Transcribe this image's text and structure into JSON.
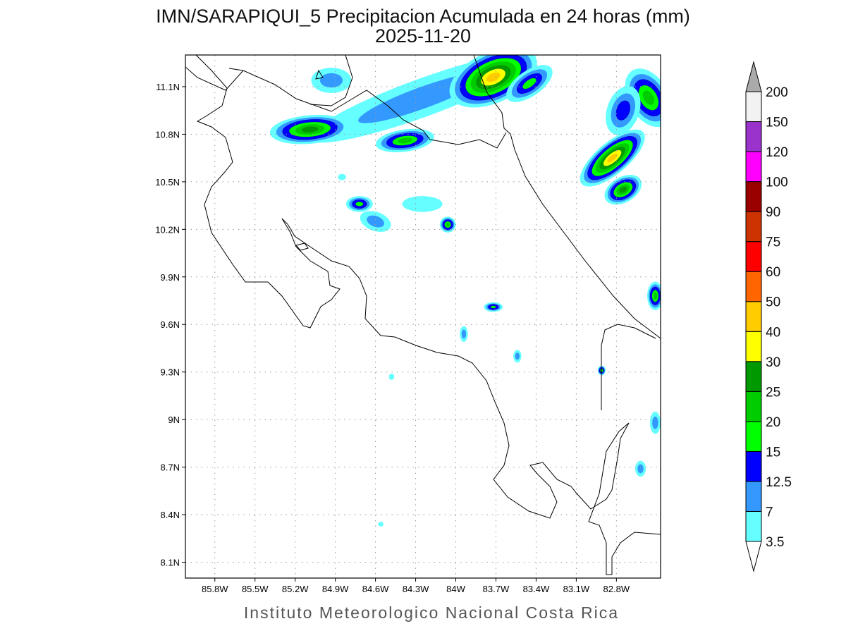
{
  "chart_data": {
    "type": "heatmap",
    "title": "IMN/SARAPIQUI_5 Precipitacion Acumulada en 24 horas (mm)",
    "subtitle": "2025-11-20",
    "footer": "Instituto Meteorologico Nacional Costa Rica",
    "x_ticks": [
      {
        "value": -85.8,
        "label": "85.8W"
      },
      {
        "value": -85.5,
        "label": "85.5W"
      },
      {
        "value": -85.2,
        "label": "85.2W"
      },
      {
        "value": -84.9,
        "label": "84.9W"
      },
      {
        "value": -84.6,
        "label": "84.6W"
      },
      {
        "value": -84.3,
        "label": "84.3W"
      },
      {
        "value": -84.0,
        "label": "84W"
      },
      {
        "value": -83.7,
        "label": "83.7W"
      },
      {
        "value": -83.4,
        "label": "83.4W"
      },
      {
        "value": -83.1,
        "label": "83.1W"
      },
      {
        "value": -82.8,
        "label": "82.8W"
      }
    ],
    "y_ticks": [
      {
        "value": 11.1,
        "label": "11.1N"
      },
      {
        "value": 10.8,
        "label": "10.8N"
      },
      {
        "value": 10.5,
        "label": "10.5N"
      },
      {
        "value": 10.2,
        "label": "10.2N"
      },
      {
        "value": 9.9,
        "label": "9.9N"
      },
      {
        "value": 9.6,
        "label": "9.6N"
      },
      {
        "value": 9.3,
        "label": "9.3N"
      },
      {
        "value": 9.0,
        "label": "9N"
      },
      {
        "value": 8.7,
        "label": "8.7N"
      },
      {
        "value": 8.4,
        "label": "8.4N"
      },
      {
        "value": 8.1,
        "label": "8.1N"
      }
    ],
    "xlim": [
      -86.02,
      -82.47
    ],
    "ylim": [
      8.0,
      11.3
    ],
    "grid": true,
    "colorbar": {
      "placement": "right",
      "levels": [
        {
          "label": "3.5",
          "value": 3.5,
          "color": "#66ffff"
        },
        {
          "label": "7",
          "value": 7,
          "color": "#3399ff"
        },
        {
          "label": "12.5",
          "value": 12.5,
          "color": "#0000ff"
        },
        {
          "label": "15",
          "value": 15,
          "color": "#00ff00"
        },
        {
          "label": "20",
          "value": 20,
          "color": "#00cc00"
        },
        {
          "label": "25",
          "value": 25,
          "color": "#009900"
        },
        {
          "label": "30",
          "value": 30,
          "color": "#ffff00"
        },
        {
          "label": "40",
          "value": 40,
          "color": "#ffcc00"
        },
        {
          "label": "50",
          "value": 50,
          "color": "#ff6600"
        },
        {
          "label": "60",
          "value": 60,
          "color": "#ff0000"
        },
        {
          "label": "75",
          "value": 75,
          "color": "#cc3300"
        },
        {
          "label": "90",
          "value": 90,
          "color": "#990000"
        },
        {
          "label": "100",
          "value": 100,
          "color": "#ff00ff"
        },
        {
          "label": "120",
          "value": 120,
          "color": "#9933cc"
        },
        {
          "label": "150",
          "value": 150,
          "color": "#f2f2f2"
        },
        {
          "label": "200",
          "value": 200,
          "color": "#aaaaaa"
        }
      ]
    },
    "precip_cells": [
      {
        "lon": -84.25,
        "lat": 11.03,
        "peak_mm": 7,
        "size_deg": [
          0.9,
          0.12
        ],
        "rot": -20
      },
      {
        "lon": -83.72,
        "lat": 11.16,
        "peak_mm": 40,
        "size_deg": [
          0.35,
          0.16
        ],
        "rot": -25
      },
      {
        "lon": -83.45,
        "lat": 11.12,
        "peak_mm": 15,
        "size_deg": [
          0.2,
          0.08
        ],
        "rot": -35
      },
      {
        "lon": -85.09,
        "lat": 10.83,
        "peak_mm": 25,
        "size_deg": [
          0.3,
          0.09
        ],
        "rot": -5
      },
      {
        "lon": -84.38,
        "lat": 10.76,
        "peak_mm": 20,
        "size_deg": [
          0.22,
          0.07
        ],
        "rot": -8
      },
      {
        "lon": -84.93,
        "lat": 11.14,
        "peak_mm": 7,
        "size_deg": [
          0.15,
          0.08
        ],
        "rot": 0
      },
      {
        "lon": -82.83,
        "lat": 10.65,
        "peak_mm": 40,
        "size_deg": [
          0.3,
          0.1
        ],
        "rot": -40
      },
      {
        "lon": -82.75,
        "lat": 10.45,
        "peak_mm": 25,
        "size_deg": [
          0.15,
          0.08
        ],
        "rot": -30
      },
      {
        "lon": -82.56,
        "lat": 11.03,
        "peak_mm": 20,
        "size_deg": [
          0.15,
          0.2
        ],
        "rot": -30
      },
      {
        "lon": -82.75,
        "lat": 10.95,
        "peak_mm": 12.5,
        "size_deg": [
          0.12,
          0.16
        ],
        "rot": 20
      },
      {
        "lon": -84.72,
        "lat": 10.36,
        "peak_mm": 15,
        "size_deg": [
          0.1,
          0.05
        ],
        "rot": 0
      },
      {
        "lon": -84.6,
        "lat": 10.25,
        "peak_mm": 7,
        "size_deg": [
          0.12,
          0.06
        ],
        "rot": 20
      },
      {
        "lon": -84.06,
        "lat": 10.23,
        "peak_mm": 20,
        "size_deg": [
          0.06,
          0.05
        ],
        "rot": 0
      },
      {
        "lon": -84.25,
        "lat": 10.36,
        "peak_mm": 3.5,
        "size_deg": [
          0.15,
          0.05
        ],
        "rot": 0
      },
      {
        "lon": -82.51,
        "lat": 9.78,
        "peak_mm": 20,
        "size_deg": [
          0.06,
          0.09
        ],
        "rot": 0
      },
      {
        "lon": -83.72,
        "lat": 9.71,
        "peak_mm": 15,
        "size_deg": [
          0.07,
          0.03
        ],
        "rot": 0
      },
      {
        "lon": -83.94,
        "lat": 9.54,
        "peak_mm": 7,
        "size_deg": [
          0.03,
          0.05
        ],
        "rot": 0
      },
      {
        "lon": -82.91,
        "lat": 9.31,
        "peak_mm": 20,
        "size_deg": [
          0.03,
          0.03
        ],
        "rot": 0
      },
      {
        "lon": -82.62,
        "lat": 8.69,
        "peak_mm": 7,
        "size_deg": [
          0.04,
          0.05
        ],
        "rot": 0
      },
      {
        "lon": -82.51,
        "lat": 8.98,
        "peak_mm": 7,
        "size_deg": [
          0.04,
          0.07
        ],
        "rot": 0
      },
      {
        "lon": -83.54,
        "lat": 9.4,
        "peak_mm": 7,
        "size_deg": [
          0.03,
          0.04
        ],
        "rot": 0
      },
      {
        "lon": -84.48,
        "lat": 9.27,
        "peak_mm": 3.5,
        "size_deg": [
          0.02,
          0.02
        ],
        "rot": 0
      },
      {
        "lon": -84.56,
        "lat": 8.34,
        "peak_mm": 3.5,
        "size_deg": [
          0.02,
          0.015
        ],
        "rot": 0
      },
      {
        "lon": -84.85,
        "lat": 10.53,
        "peak_mm": 3.5,
        "size_deg": [
          0.03,
          0.02
        ],
        "rot": 0
      }
    ]
  }
}
